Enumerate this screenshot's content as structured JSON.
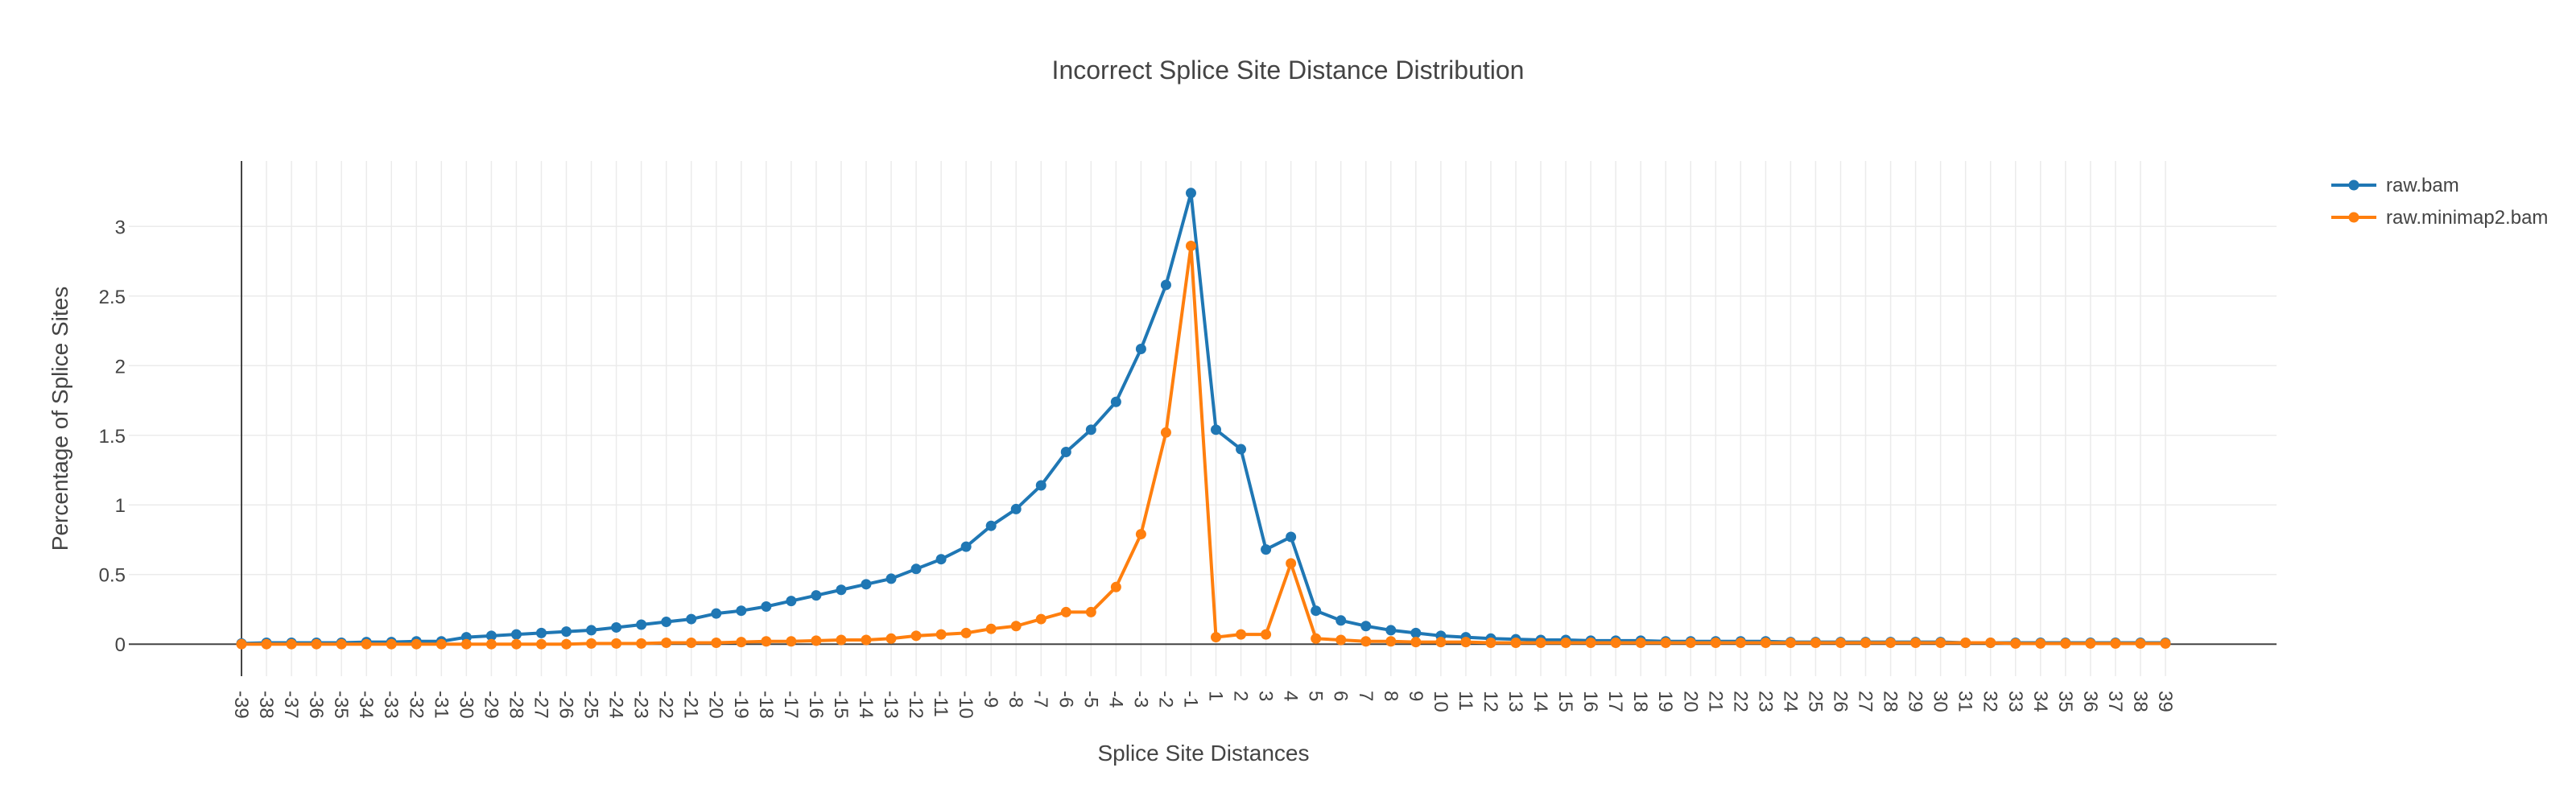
{
  "chart_data": {
    "type": "line",
    "title": "Incorrect Splice Site Distance Distribution",
    "xlabel": "Splice Site Distances",
    "ylabel": "Percentage of Splice Sites",
    "categories": [
      "-39",
      "-38",
      "-37",
      "-36",
      "-35",
      "-34",
      "-33",
      "-32",
      "-31",
      "-30",
      "-29",
      "-28",
      "-27",
      "-26",
      "-25",
      "-24",
      "-23",
      "-22",
      "-21",
      "-20",
      "-19",
      "-18",
      "-17",
      "-16",
      "-15",
      "-14",
      "-13",
      "-12",
      "-11",
      "-10",
      "-9",
      "-8",
      "-7",
      "-6",
      "-5",
      "-4",
      "-3",
      "-2",
      "-1",
      "1",
      "2",
      "3",
      "4",
      "5",
      "6",
      "7",
      "8",
      "9",
      "10",
      "11",
      "12",
      "13",
      "14",
      "15",
      "16",
      "17",
      "18",
      "19",
      "20",
      "21",
      "22",
      "23",
      "24",
      "25",
      "26",
      "27",
      "28",
      "29",
      "30",
      "31",
      "32",
      "33",
      "34",
      "35",
      "36",
      "37",
      "38",
      "39"
    ],
    "yticks": [
      "0",
      "0.5",
      "1",
      "1.5",
      "2",
      "2.5",
      "3"
    ],
    "ylim": [
      -0.23,
      3.47
    ],
    "grid": true,
    "legend": "top-right",
    "series": [
      {
        "name": "raw.bam",
        "color": "#1f77b4",
        "values": [
          0.005,
          0.01,
          0.01,
          0.01,
          0.01,
          0.015,
          0.015,
          0.02,
          0.02,
          0.05,
          0.06,
          0.07,
          0.08,
          0.09,
          0.1,
          0.12,
          0.14,
          0.16,
          0.18,
          0.22,
          0.24,
          0.27,
          0.31,
          0.35,
          0.39,
          0.43,
          0.47,
          0.54,
          0.61,
          0.7,
          0.85,
          0.97,
          1.14,
          1.38,
          1.54,
          1.74,
          2.12,
          2.58,
          3.24,
          1.54,
          1.4,
          0.68,
          0.77,
          0.24,
          0.17,
          0.13,
          0.1,
          0.08,
          0.06,
          0.05,
          0.04,
          0.035,
          0.03,
          0.03,
          0.025,
          0.025,
          0.025,
          0.02,
          0.02,
          0.02,
          0.02,
          0.02,
          0.015,
          0.015,
          0.015,
          0.015,
          0.015,
          0.015,
          0.015,
          0.01,
          0.01,
          0.01,
          0.01,
          0.01,
          0.01,
          0.01,
          0.01,
          0.01
        ]
      },
      {
        "name": "raw.minimap2.bam",
        "color": "#ff7f0e",
        "values": [
          0.0,
          0.0,
          0.0,
          0.0,
          0.0,
          0.0,
          0.0,
          0.0,
          0.0,
          0.0,
          0.0,
          0.0,
          0.0,
          0.0,
          0.005,
          0.005,
          0.005,
          0.01,
          0.01,
          0.01,
          0.015,
          0.02,
          0.02,
          0.025,
          0.03,
          0.03,
          0.04,
          0.06,
          0.07,
          0.08,
          0.11,
          0.13,
          0.18,
          0.23,
          0.23,
          0.41,
          0.79,
          1.52,
          2.86,
          0.05,
          0.07,
          0.07,
          0.58,
          0.04,
          0.03,
          0.02,
          0.02,
          0.015,
          0.015,
          0.015,
          0.01,
          0.01,
          0.01,
          0.01,
          0.01,
          0.01,
          0.01,
          0.01,
          0.01,
          0.01,
          0.01,
          0.01,
          0.01,
          0.01,
          0.01,
          0.01,
          0.01,
          0.01,
          0.01,
          0.01,
          0.01,
          0.005,
          0.005,
          0.005,
          0.005,
          0.005,
          0.005,
          0.005
        ]
      }
    ]
  }
}
